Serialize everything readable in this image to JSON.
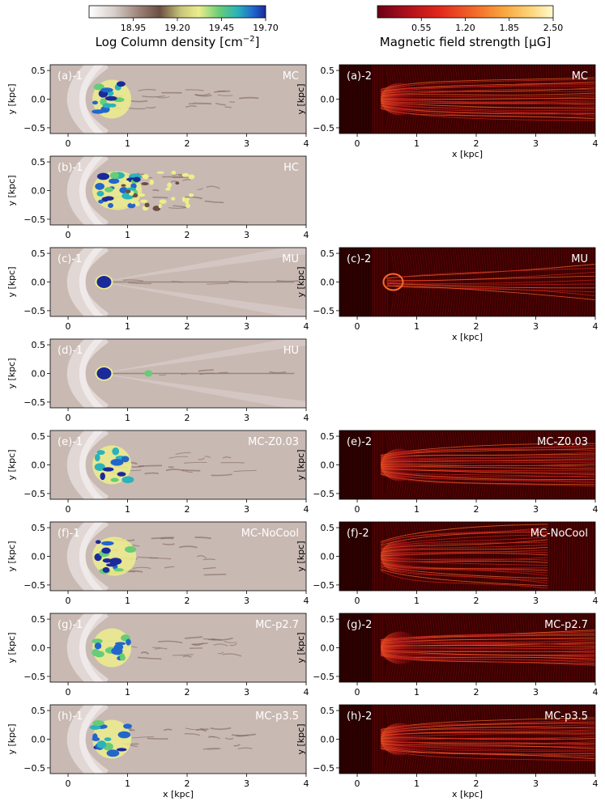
{
  "colorbars": {
    "density": {
      "label": "Log Column density [cm",
      "label_sup": "−2",
      "label_end": "]",
      "ticks": [
        "18.95",
        "19.20",
        "19.45",
        "19.70"
      ],
      "tick_values": [
        18.95,
        19.2,
        19.45,
        19.7
      ],
      "range": [
        18.7,
        19.7
      ]
    },
    "magnetic": {
      "label": "Magnetic field strength [μG]",
      "ticks": [
        "0.55",
        "1.20",
        "1.85",
        "2.50"
      ],
      "tick_values": [
        0.55,
        1.2,
        1.85,
        2.5
      ],
      "range": [
        -0.1,
        2.5
      ]
    }
  },
  "axes": {
    "xlabel": "x [kpc]",
    "ylabel": "y [kpc]",
    "xticks": [
      "0",
      "1",
      "2",
      "3",
      "4"
    ],
    "xtick_values": [
      0,
      1,
      2,
      3,
      4
    ],
    "yticks": [
      "0.5",
      "0.0",
      "−0.5"
    ],
    "ytick_values": [
      0.5,
      0.0,
      -0.5
    ],
    "xlim": [
      -0.3,
      4.0
    ],
    "ylim": [
      -0.6,
      0.6
    ]
  },
  "panels": [
    {
      "row": 0,
      "col": 0,
      "label": "(a)-1",
      "model": "MC",
      "kind": "density",
      "cloud": "clumpy",
      "trail": "moderate",
      "show_xlabel": false
    },
    {
      "row": 0,
      "col": 1,
      "label": "(a)-2",
      "model": "MC",
      "kind": "magnetic",
      "cloud": "clumpy",
      "trail": "moderate",
      "show_xlabel": true
    },
    {
      "row": 1,
      "col": 0,
      "label": "(b)-1",
      "model": "HC",
      "kind": "density",
      "cloud": "hot-clumpy",
      "trail": "fragmented",
      "show_xlabel": false
    },
    {
      "row": 2,
      "col": 0,
      "label": "(c)-1",
      "model": "MU",
      "kind": "density",
      "cloud": "uniform",
      "trail": "thin",
      "show_xlabel": false
    },
    {
      "row": 2,
      "col": 1,
      "label": "(c)-2",
      "model": "MU",
      "kind": "magnetic",
      "cloud": "uniform",
      "trail": "thin",
      "show_xlabel": true
    },
    {
      "row": 3,
      "col": 0,
      "label": "(d)-1",
      "model": "HU",
      "kind": "density",
      "cloud": "uniform",
      "trail": "thin",
      "show_xlabel": false
    },
    {
      "row": 4,
      "col": 0,
      "label": "(e)-1",
      "model": "MC-Z0.03",
      "kind": "density",
      "cloud": "clumpy",
      "trail": "moderate",
      "show_xlabel": false
    },
    {
      "row": 4,
      "col": 1,
      "label": "(e)-2",
      "model": "MC-Z0.03",
      "kind": "magnetic",
      "cloud": "clumpy",
      "trail": "moderate",
      "show_xlabel": false
    },
    {
      "row": 5,
      "col": 0,
      "label": "(f)-1",
      "model": "MC-NoCool",
      "kind": "density",
      "cloud": "nocool",
      "trail": "wide",
      "show_xlabel": false
    },
    {
      "row": 5,
      "col": 1,
      "label": "(f)-2",
      "model": "MC-NoCool",
      "kind": "magnetic",
      "cloud": "nocool",
      "trail": "wide",
      "show_xlabel": false
    },
    {
      "row": 6,
      "col": 0,
      "label": "(g)-1",
      "model": "MC-p2.7",
      "kind": "density",
      "cloud": "clumpy",
      "trail": "long",
      "show_xlabel": false
    },
    {
      "row": 6,
      "col": 1,
      "label": "(g)-2",
      "model": "MC-p2.7",
      "kind": "magnetic",
      "cloud": "clumpy",
      "trail": "long",
      "show_xlabel": false
    },
    {
      "row": 7,
      "col": 0,
      "label": "(h)-1",
      "model": "MC-p3.5",
      "kind": "density",
      "cloud": "clumpy",
      "trail": "moderate",
      "show_xlabel": true
    },
    {
      "row": 7,
      "col": 1,
      "label": "(h)-2",
      "model": "MC-p3.5",
      "kind": "magnetic",
      "cloud": "clumpy",
      "trail": "moderate",
      "show_xlabel": true
    }
  ],
  "colors": {
    "density_background": "#c9b9b3",
    "density_bowshock": "#e8e2df",
    "magnetic_background": "#3a0000",
    "density_scale": [
      "#ffffff",
      "#d8cfcb",
      "#9c8378",
      "#6b4e43",
      "#c7c77a",
      "#eded8c",
      "#66cc77",
      "#2ab3b9",
      "#2266cc",
      "#1b2a9a"
    ],
    "magnetic_scale": [
      "#6b0018",
      "#b0121a",
      "#e0281c",
      "#f2682a",
      "#f9a640",
      "#fcd77c",
      "#fffbd0"
    ]
  }
}
